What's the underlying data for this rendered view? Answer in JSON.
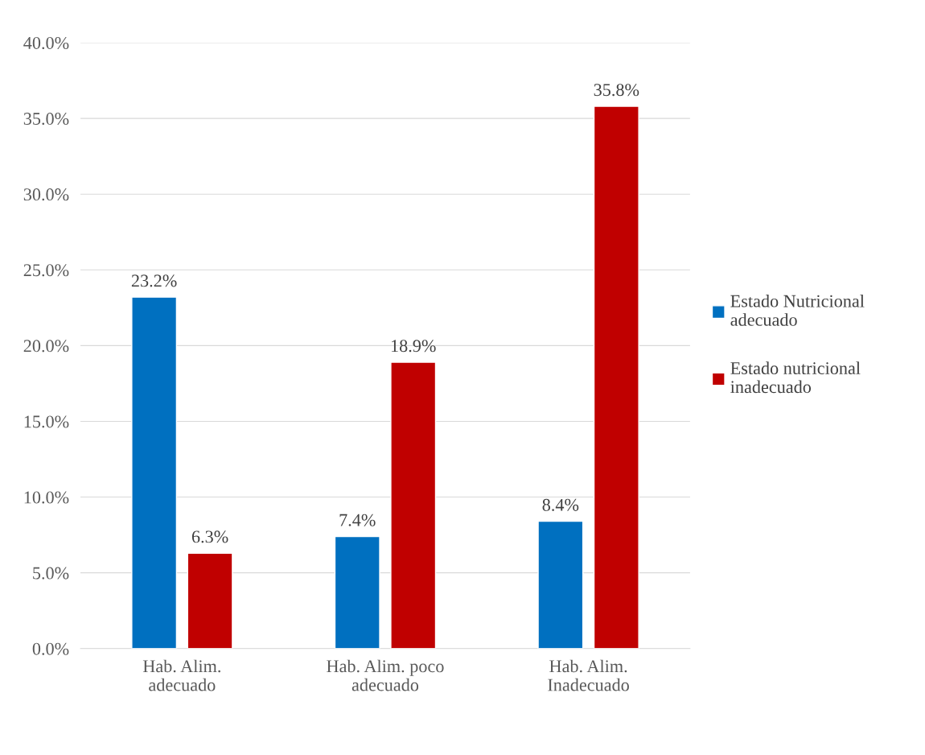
{
  "chart_data": {
    "type": "bar",
    "categories": [
      "Hab. Alim. adecuado",
      "Hab. Alim. poco adecuado",
      "Hab. Alim. Inadecuado"
    ],
    "series": [
      {
        "name": "Estado Nutricional adecuado",
        "color": "#0070c0",
        "values": [
          23.2,
          7.4,
          8.4
        ],
        "value_labels": [
          "23.2%",
          "7.4%",
          "8.4%"
        ]
      },
      {
        "name": "Estado nutricional inadecuado",
        "color": "#c00000",
        "values": [
          6.3,
          18.9,
          35.8
        ],
        "value_labels": [
          "6.3%",
          "18.9%",
          "35.8%"
        ]
      }
    ],
    "ylim": [
      0,
      40
    ],
    "yticks": [
      {
        "value": 0,
        "label": "0.0%"
      },
      {
        "value": 5,
        "label": "5.0%"
      },
      {
        "value": 10,
        "label": "10.0%"
      },
      {
        "value": 15,
        "label": "15.0%"
      },
      {
        "value": 20,
        "label": "20.0%"
      },
      {
        "value": 25,
        "label": "25.0%"
      },
      {
        "value": 30,
        "label": "30.0%"
      },
      {
        "value": 35,
        "label": "35.0%"
      },
      {
        "value": 40,
        "label": "40.0%"
      }
    ],
    "grid": "y",
    "legend": "right"
  }
}
